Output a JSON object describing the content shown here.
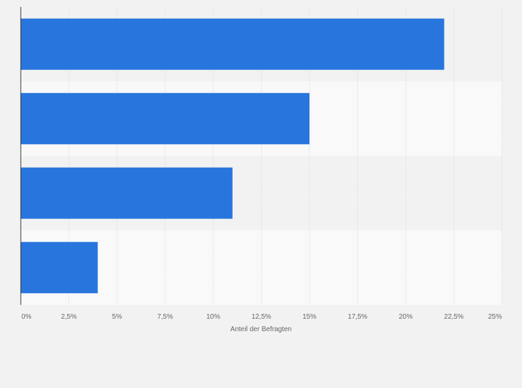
{
  "chart_data": {
    "type": "bar",
    "orientation": "horizontal",
    "categories": [
      "",
      "",
      "",
      ""
    ],
    "values": [
      22,
      15,
      11,
      4
    ],
    "xlabel": "Anteil der Befragten",
    "ylabel": "",
    "xlim": [
      0,
      25
    ],
    "x_ticks": [
      0,
      2.5,
      5,
      7.5,
      10,
      12.5,
      15,
      17.5,
      20,
      22.5,
      25
    ],
    "x_tick_labels": [
      "0%",
      "2,5%",
      "5%",
      "7,5%",
      "10%",
      "12,5%",
      "15%",
      "17,5%",
      "20%",
      "22,5%",
      "25%"
    ],
    "grid": true,
    "legend": "none",
    "colors": {
      "bar": "#2876dd",
      "band_dark": "#f2f2f2",
      "band_light": "#f9f9f9",
      "grid": "#dcdcdc",
      "axis": "#333333",
      "tick_text": "#666666"
    }
  }
}
